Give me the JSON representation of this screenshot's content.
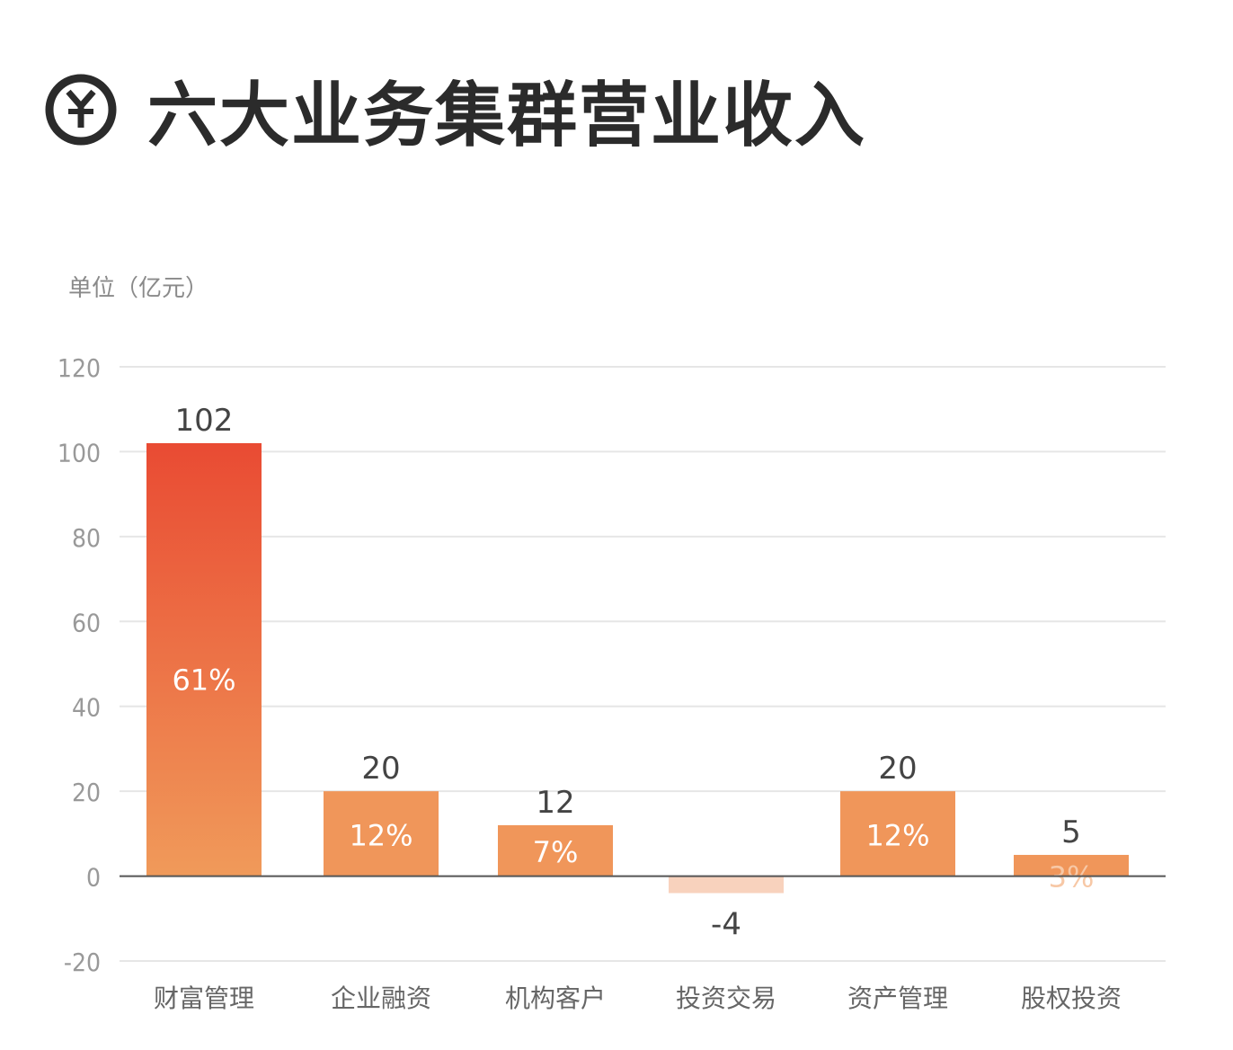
{
  "title": "六大业务集群营业收入",
  "title_icon": "yen-circle-icon",
  "chart_data": {
    "type": "bar",
    "title": "六大业务集群营业收入",
    "ylabel": "单位（亿元）",
    "xlabel": "",
    "categories": [
      "财富管理",
      "企业融资",
      "机构客户",
      "投资交易",
      "资产管理",
      "股权投资"
    ],
    "values": [
      102,
      20,
      12,
      -4,
      20,
      5
    ],
    "value_labels": [
      "102",
      "20",
      "12",
      "-4",
      "20",
      "5"
    ],
    "share_labels": [
      "61%",
      "12%",
      "7%",
      "",
      "12%",
      "3%"
    ],
    "ylim": [
      -20,
      120
    ],
    "yticks": [
      120,
      100,
      80,
      60,
      40,
      20,
      0,
      -20
    ],
    "grid": true,
    "colors": {
      "top_bar_gradient": [
        "#e94b33",
        "#f09a5a"
      ],
      "bar": "#f0965a",
      "negative_bar": "#f8d2bd",
      "text": "#444444",
      "axis_tick": "#999999"
    }
  }
}
